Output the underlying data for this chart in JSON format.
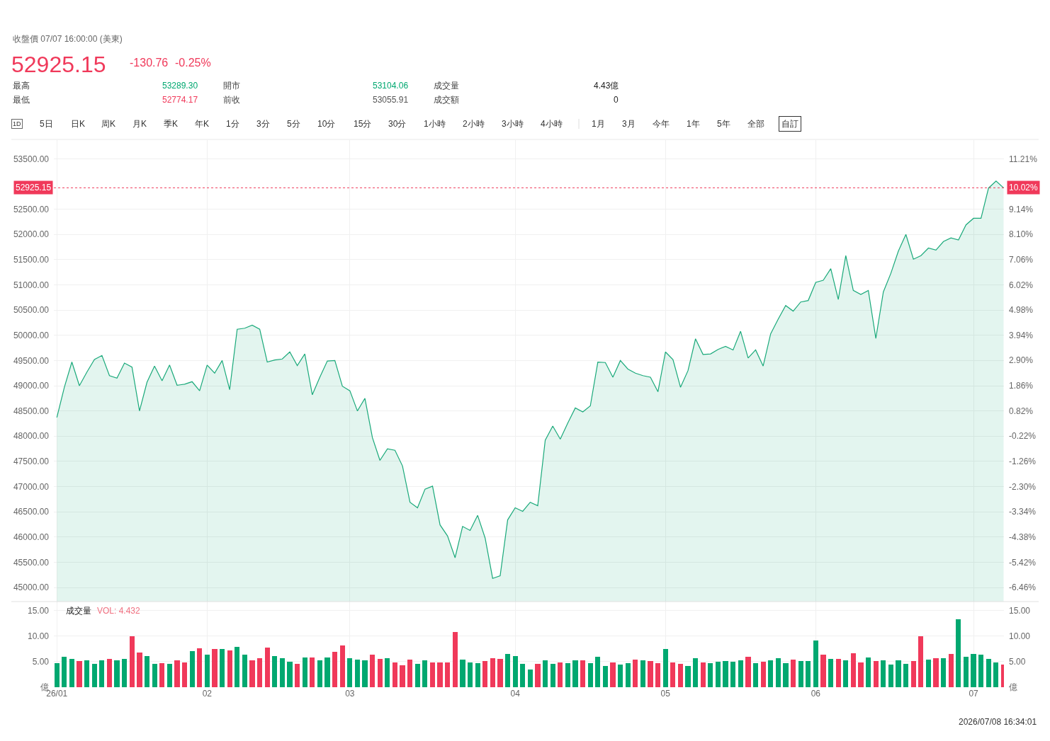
{
  "chart_data": [
    {
      "type": "area",
      "categories": [
        null,
        null,
        null,
        null,
        null,
        null,
        null,
        null,
        null,
        null,
        null,
        null,
        null,
        null,
        null,
        null,
        null,
        null,
        null,
        null,
        null,
        null,
        null,
        null,
        null,
        null,
        null,
        null,
        null,
        null,
        null,
        null,
        null,
        null,
        null,
        null,
        null,
        null,
        null,
        null,
        null,
        null,
        null,
        null,
        null,
        null,
        null,
        null,
        null,
        null,
        null,
        null,
        null,
        null,
        null,
        null,
        null,
        null,
        null,
        null,
        null,
        null,
        null,
        null,
        null,
        null,
        null,
        null,
        null,
        null,
        null,
        null,
        null,
        null,
        null,
        null,
        null,
        null,
        null,
        null,
        null,
        null,
        null,
        null,
        null,
        null,
        null,
        null,
        null,
        null,
        null,
        null,
        null,
        null,
        null,
        null,
        null,
        null,
        null,
        null,
        null,
        null,
        null,
        null,
        null,
        null,
        null,
        null,
        null,
        null,
        null,
        null,
        null,
        null,
        null,
        null,
        null,
        null,
        null,
        null,
        null,
        null,
        null,
        null,
        null,
        null,
        null
      ],
      "values": [
        48370,
        48970,
        49470,
        49000,
        49270,
        49520,
        49600,
        49200,
        49150,
        49450,
        49370,
        48500,
        49070,
        49390,
        49100,
        49410,
        49010,
        49030,
        49080,
        48900,
        49410,
        49250,
        49500,
        48920,
        50120,
        50140,
        50200,
        50120,
        49470,
        49510,
        49530,
        49670,
        49400,
        49630,
        48820,
        49170,
        49490,
        49500,
        48990,
        48900,
        48500,
        48750,
        47970,
        47520,
        47750,
        47720,
        47410,
        46690,
        46580,
        46950,
        47010,
        46240,
        46020,
        45590,
        46210,
        46130,
        46430,
        45980,
        45180,
        45230,
        46340,
        46580,
        46510,
        46690,
        46620,
        47920,
        48200,
        47940,
        48260,
        48560,
        48480,
        48600,
        49470,
        49460,
        49170,
        49500,
        49330,
        49250,
        49200,
        49170,
        48880,
        49670,
        49520,
        48970,
        49300,
        49930,
        49620,
        49630,
        49720,
        49780,
        49710,
        50080,
        49550,
        49710,
        49390,
        50030,
        50320,
        50590,
        50480,
        50660,
        50690,
        51050,
        51090,
        51320,
        50710,
        51580,
        50890,
        50810,
        50890,
        49940,
        50860,
        51230,
        51670,
        52000,
        51510,
        51580,
        51730,
        51690,
        51860,
        51930,
        51890,
        52190,
        52320,
        52320,
        52920,
        53060,
        52925
      ],
      "color": "#1aa97a",
      "ylim": [
        44720,
        53870
      ],
      "yticks": [
        {
          "value": 45000,
          "label": "45000.00"
        },
        {
          "value": 45500,
          "label": "45500.00"
        },
        {
          "value": 46000,
          "label": "46000.00"
        },
        {
          "value": 46500,
          "label": "46500.00"
        },
        {
          "value": 47000,
          "label": "47000.00"
        },
        {
          "value": 47500,
          "label": "47500.00"
        },
        {
          "value": 48000,
          "label": "48000.00"
        },
        {
          "value": 48500,
          "label": "48500.00"
        },
        {
          "value": 49000,
          "label": "49000.00"
        },
        {
          "value": 49500,
          "label": "49500.00"
        },
        {
          "value": 50000,
          "label": "50000.00"
        },
        {
          "value": 50500,
          "label": "50500.00"
        },
        {
          "value": 51000,
          "label": "51000.00"
        },
        {
          "value": 51500,
          "label": "51500.00"
        },
        {
          "value": 52000,
          "label": "52000.00"
        },
        {
          "value": 52500,
          "label": "52500.00"
        },
        {
          "value": 53500,
          "label": "53500.00"
        }
      ],
      "y2lim": [
        -7.04,
        11.98
      ],
      "y2ticks": [
        {
          "value": -6.46,
          "label": "-6.46%"
        },
        {
          "value": -5.42,
          "label": "-5.42%"
        },
        {
          "value": -4.38,
          "label": "-4.38%"
        },
        {
          "value": -3.34,
          "label": "-3.34%"
        },
        {
          "value": -2.3,
          "label": "-2.30%"
        },
        {
          "value": -1.26,
          "label": "-1.26%"
        },
        {
          "value": -0.22,
          "label": "-0.22%"
        },
        {
          "value": 0.82,
          "label": "0.82%"
        },
        {
          "value": 1.86,
          "label": "1.86%"
        },
        {
          "value": 2.9,
          "label": "2.90%"
        },
        {
          "value": 3.94,
          "label": "3.94%"
        },
        {
          "value": 4.98,
          "label": "4.98%"
        },
        {
          "value": 6.02,
          "label": "6.02%"
        },
        {
          "value": 7.06,
          "label": "7.06%"
        },
        {
          "value": 8.1,
          "label": "8.10%"
        },
        {
          "value": 9.14,
          "label": "9.14%"
        },
        {
          "value": 11.21,
          "label": "11.21%"
        }
      ],
      "ref_lines": [
        {
          "axis": "y",
          "value": 52925.15,
          "label": "52925.15",
          "color": "#f0395a",
          "line_style": "dotted"
        }
      ],
      "grid": true,
      "tick_labels": "y",
      "annotations": [
        "收盤價 07/07 16:00:00 (美東)",
        "52925.15",
        "-130.76",
        "-0.25%",
        "最高",
        "53289.30",
        "開市",
        "53104.06",
        "成交量",
        "4.43億",
        "最低",
        "52774.17",
        "前收",
        "53055.91",
        "成交額",
        "0",
        "1D",
        "5日",
        "日K",
        "周K",
        "月K",
        "季K",
        "年K",
        "1分",
        "3分",
        "5分",
        "10分",
        "15分",
        "30分",
        "1小時",
        "2小時",
        "3小時",
        "4小時",
        "1月",
        "3月",
        "今年",
        "1年",
        "5年",
        "全部",
        "自訂",
        "10.02%"
      ]
    },
    {
      "type": "bar",
      "categories": [
        "26/01",
        null,
        null,
        null,
        null,
        null,
        null,
        null,
        null,
        null,
        null,
        null,
        null,
        null,
        null,
        null,
        null,
        null,
        null,
        null,
        "02",
        null,
        null,
        null,
        null,
        null,
        null,
        null,
        null,
        null,
        null,
        null,
        null,
        null,
        null,
        null,
        null,
        null,
        null,
        "03",
        null,
        null,
        null,
        null,
        null,
        null,
        null,
        null,
        null,
        null,
        null,
        null,
        null,
        null,
        null,
        null,
        null,
        null,
        null,
        null,
        null,
        "04",
        null,
        null,
        null,
        null,
        null,
        null,
        null,
        null,
        null,
        null,
        null,
        null,
        null,
        null,
        null,
        null,
        null,
        null,
        null,
        "05",
        null,
        null,
        null,
        null,
        null,
        null,
        null,
        null,
        null,
        null,
        null,
        null,
        null,
        null,
        null,
        null,
        null,
        null,
        null,
        "06",
        null,
        null,
        null,
        null,
        null,
        null,
        null,
        null,
        null,
        null,
        null,
        null,
        null,
        null,
        null,
        null,
        null,
        null,
        null,
        null,
        "07",
        null,
        null,
        null,
        null
      ],
      "values": [
        4.7,
        5.9,
        5.5,
        5.1,
        5.2,
        4.5,
        5.2,
        5.5,
        5.3,
        5.5,
        9.9,
        6.8,
        6.1,
        4.6,
        4.7,
        4.6,
        5.3,
        4.8,
        7.0,
        7.6,
        6.4,
        7.4,
        7.4,
        7.2,
        7.8,
        6.3,
        5.3,
        5.7,
        7.7,
        6.1,
        5.7,
        5.0,
        4.5,
        5.8,
        5.8,
        5.3,
        5.8,
        6.9,
        8.2,
        5.6,
        5.4,
        5.2,
        6.4,
        5.5,
        5.7,
        4.9,
        4.3,
        5.4,
        4.6,
        5.2,
        4.9,
        4.9,
        4.9,
        10.7,
        5.4,
        4.8,
        4.7,
        5.1,
        5.6,
        5.5,
        6.5,
        6.1,
        4.6,
        3.5,
        4.6,
        5.3,
        4.5,
        4.9,
        4.7,
        5.3,
        5.3,
        4.7,
        5.9,
        4.2,
        4.9,
        4.4,
        4.7,
        5.4,
        5.2,
        5.1,
        4.7,
        7.4,
        4.8,
        4.5,
        4.1,
        5.6,
        4.9,
        4.7,
        5.0,
        5.1,
        5.0,
        5.2,
        6.0,
        4.7,
        5.0,
        5.2,
        5.7,
        4.7,
        5.4,
        5.1,
        5.1,
        9.1,
        6.4,
        5.5,
        5.5,
        5.3,
        6.6,
        4.9,
        5.8,
        5.1,
        5.3,
        4.4,
        5.2,
        4.6,
        5.1,
        9.9,
        5.4,
        5.7,
        5.7,
        6.5,
        13.2,
        6.0,
        6.5,
        6.4,
        5.5,
        4.8,
        4.4
      ],
      "colors": [
        "#00a870",
        "#00a870",
        "#00a870",
        "#f0395a",
        "#00a870",
        "#00a870",
        "#00a870",
        "#f0395a",
        "#00a870",
        "#00a870",
        "#f0395a",
        "#f0395a",
        "#00a870",
        "#00a870",
        "#f0395a",
        "#00a870",
        "#f0395a",
        "#f0395a",
        "#00a870",
        "#f0395a",
        "#00a870",
        "#f0395a",
        "#00a870",
        "#f0395a",
        "#00a870",
        "#00a870",
        "#f0395a",
        "#f0395a",
        "#f0395a",
        "#00a870",
        "#00a870",
        "#00a870",
        "#f0395a",
        "#00a870",
        "#f0395a",
        "#00a870",
        "#00a870",
        "#f0395a",
        "#f0395a",
        "#00a870",
        "#00a870",
        "#00a870",
        "#f0395a",
        "#f0395a",
        "#00a870",
        "#f0395a",
        "#f0395a",
        "#f0395a",
        "#00a870",
        "#00a870",
        "#f0395a",
        "#f0395a",
        "#f0395a",
        "#f0395a",
        "#00a870",
        "#00a870",
        "#00a870",
        "#f0395a",
        "#f0395a",
        "#f0395a",
        "#00a870",
        "#00a870",
        "#00a870",
        "#00a870",
        "#f0395a",
        "#00a870",
        "#00a870",
        "#f0395a",
        "#00a870",
        "#00a870",
        "#f0395a",
        "#00a870",
        "#00a870",
        "#00a870",
        "#f0395a",
        "#00a870",
        "#00a870",
        "#f0395a",
        "#00a870",
        "#f0395a",
        "#f0395a",
        "#00a870",
        "#f0395a",
        "#f0395a",
        "#00a870",
        "#00a870",
        "#f0395a",
        "#00a870",
        "#00a870",
        "#00a870",
        "#00a870",
        "#00a870",
        "#f0395a",
        "#00a870",
        "#f0395a",
        "#00a870",
        "#00a870",
        "#00a870",
        "#f0395a",
        "#00a870",
        "#00a870",
        "#00a870",
        "#f0395a",
        "#00a870",
        "#f0395a",
        "#00a870",
        "#f0395a",
        "#f0395a",
        "#00a870",
        "#f0395a",
        "#00a870",
        "#00a870",
        "#00a870",
        "#00a870",
        "#f0395a",
        "#f0395a",
        "#00a870",
        "#f0395a",
        "#00a870",
        "#f0395a",
        "#00a870",
        "#00a870",
        "#00a870",
        "#00a870",
        "#00a870",
        "#00a870",
        "#f0395a"
      ],
      "ylim": [
        0,
        16.7
      ],
      "yticks": [
        {
          "value": 0,
          "label": "億"
        },
        {
          "value": 5,
          "label": "5.00"
        },
        {
          "value": 10,
          "label": "10.00"
        },
        {
          "value": 15,
          "label": "15.00"
        }
      ],
      "y2lim": [
        0,
        16.7
      ],
      "y2ticks": [
        {
          "value": 0,
          "label": "億"
        },
        {
          "value": 5,
          "label": "5.00"
        },
        {
          "value": 10,
          "label": "10.00"
        },
        {
          "value": 15,
          "label": "15.00"
        }
      ],
      "grid": true,
      "annotations": [
        "成交量",
        "VOL: 4.432",
        "2026/07/08 16:34:01"
      ]
    }
  ]
}
